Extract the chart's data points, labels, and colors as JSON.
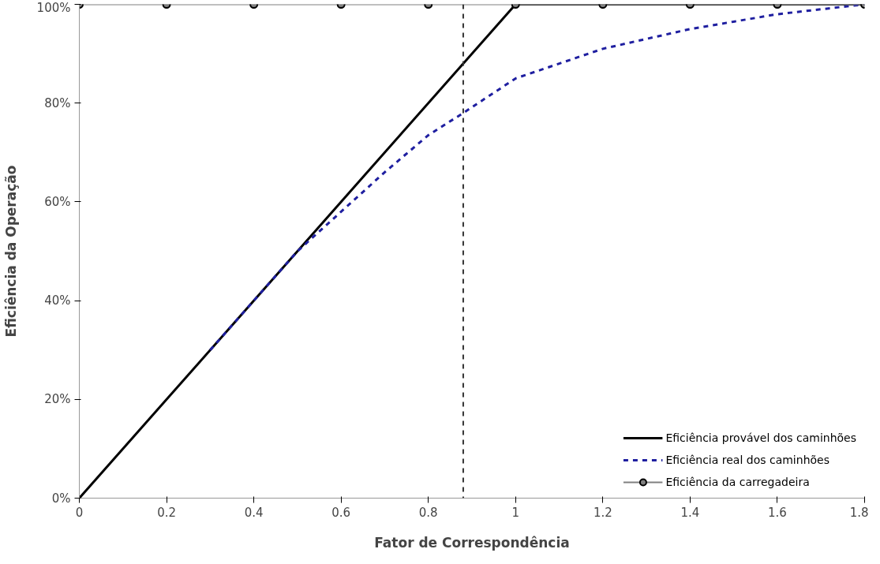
{
  "chart_data": {
    "type": "line",
    "xlabel": "Fator de Correspondência",
    "ylabel": "Eficiência da Operação",
    "xlim": [
      0,
      1.8
    ],
    "xticks": [
      0,
      0.2,
      0.4,
      0.6,
      0.8,
      1,
      1.2,
      1.4,
      1.6,
      1.8
    ],
    "ylim": [
      0,
      100
    ],
    "yticks": [
      {
        "value": 0,
        "label": "0%"
      },
      {
        "value": 20,
        "label": "20%"
      },
      {
        "value": 40,
        "label": "40%"
      },
      {
        "value": 60,
        "label": "60%"
      },
      {
        "value": 80,
        "label": "80%"
      },
      {
        "value": 100,
        "label": "100%"
      }
    ],
    "grid": false,
    "legend": "bottom right",
    "series": [
      {
        "name": "Eficiência provável dos caminhões",
        "color": "#000000",
        "line_style": "solid",
        "x": [
          0,
          1,
          1.8
        ],
        "values": [
          0,
          100,
          100
        ]
      },
      {
        "name": "Eficiência real dos caminhões",
        "color": "#1f1fa0",
        "line_style": "dashed",
        "x": [
          0.3,
          0.4,
          0.5,
          0.6,
          0.7,
          0.8,
          0.88,
          1.0,
          1.1,
          1.2,
          1.3,
          1.4,
          1.5,
          1.6,
          1.7,
          1.8
        ],
        "values": [
          30,
          40,
          50,
          58,
          66,
          73.5,
          78,
          85,
          88,
          91,
          93,
          95,
          96.5,
          98,
          99,
          100
        ]
      },
      {
        "name": "Eficiência da carregadeira",
        "color": "#808080",
        "line_style": "solid",
        "marker": "circle",
        "x": [
          0,
          0.2,
          0.4,
          0.6,
          0.8,
          1,
          1.2,
          1.4,
          1.6,
          1.8
        ],
        "values": [
          100,
          100,
          100,
          100,
          100,
          100,
          100,
          100,
          100,
          100
        ]
      }
    ],
    "ref_lines": [
      {
        "axis": "x",
        "value": 0.88,
        "label": null,
        "color": "#333333",
        "line_style": "dashed"
      }
    ]
  }
}
